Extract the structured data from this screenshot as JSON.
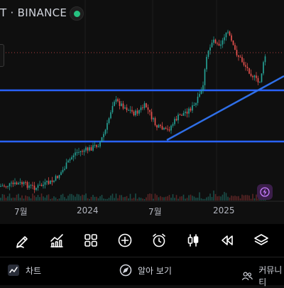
{
  "header": {
    "symbol_text": "T · BINANCE"
  },
  "chart": {
    "x_labels": [
      "7월",
      "2024",
      "7월",
      "2025"
    ],
    "colors": {
      "up": "#26a69a",
      "down": "#ef5350",
      "level_line": "#2962ff",
      "trend_line": "#2f6fe8",
      "dotted_line": "#ef5350"
    }
  },
  "toolbar": {
    "items": [
      "draw-icon",
      "indicators-icon",
      "layouts-icon",
      "add-icon",
      "alert-icon",
      "candles-icon",
      "replay-icon",
      "layers-icon"
    ]
  },
  "tabs": {
    "chart_label": "차트",
    "explore_label": "알아 보기",
    "community_label": "커뮤니티"
  }
}
